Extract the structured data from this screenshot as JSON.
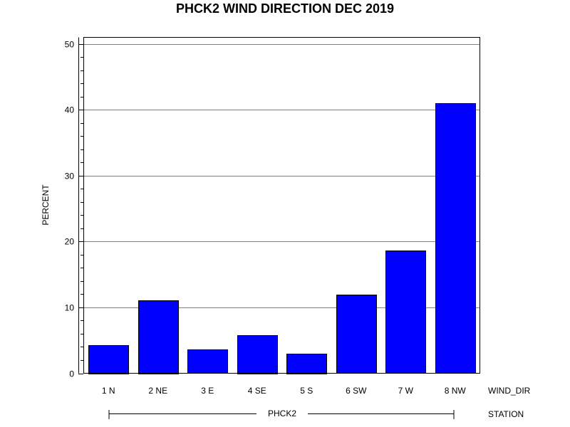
{
  "chart_data": {
    "type": "bar",
    "title": "PHCK2 WIND DIRECTION DEC 2019",
    "ylabel": "PERCENT",
    "xlabel": "WIND_DIR",
    "group_label": "STATION",
    "group_value": "PHCK2",
    "categories": [
      "1 N",
      "2 NE",
      "3 E",
      "4 SE",
      "5 S",
      "6 SW",
      "7 W",
      "8 NW"
    ],
    "values": [
      4.3,
      11.1,
      3.6,
      5.8,
      3.0,
      11.9,
      18.6,
      41.0
    ],
    "ylim": [
      0,
      51
    ],
    "yticks": [
      "0",
      "10",
      "20",
      "30",
      "40",
      "50"
    ],
    "grid": true,
    "colors": {
      "bar": "#0000ff",
      "grid": "#808080"
    }
  }
}
